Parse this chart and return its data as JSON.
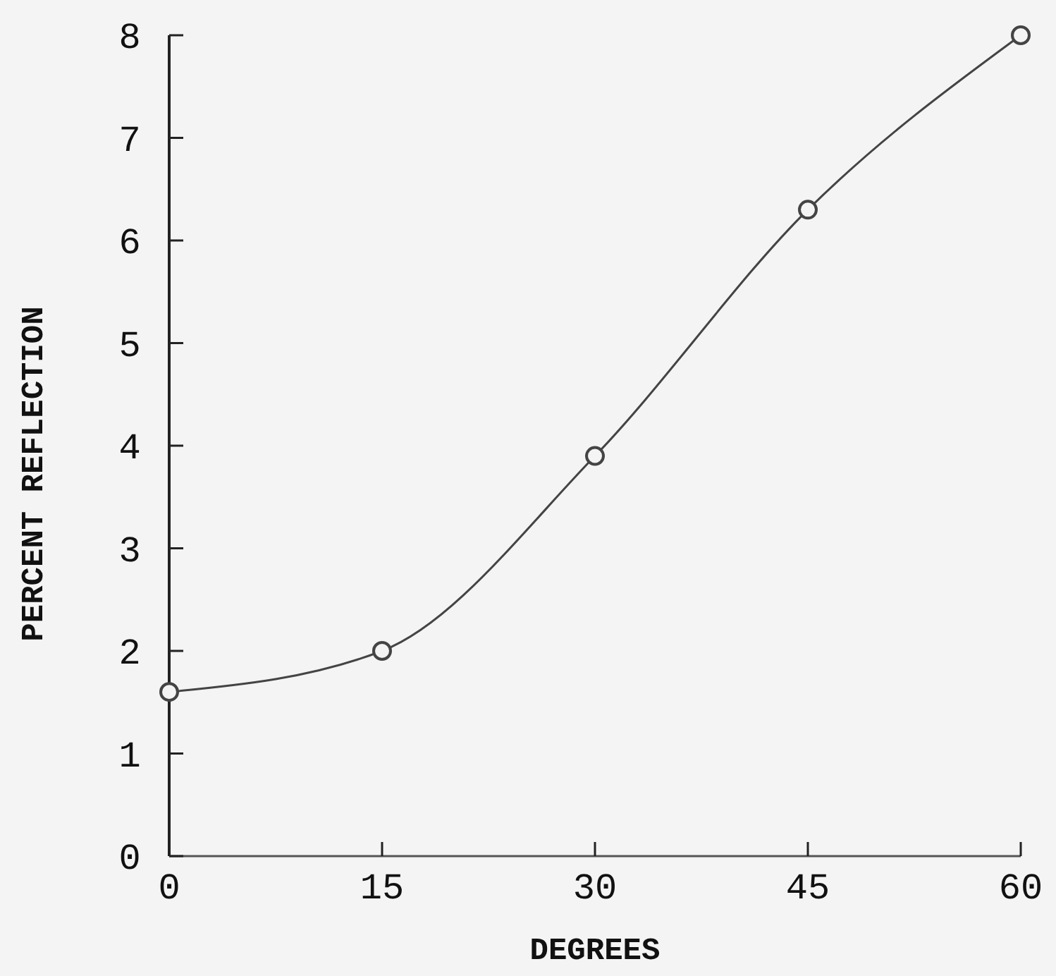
{
  "chart_data": {
    "type": "line",
    "xlabel": "DEGREES",
    "ylabel": "PERCENT REFLECTION",
    "x": [
      0,
      15,
      30,
      45,
      60
    ],
    "series": [
      {
        "color": "#444444",
        "values": [
          1.6,
          2.0,
          3.9,
          6.3,
          8.0
        ]
      }
    ],
    "xlim": [
      0,
      60
    ],
    "xticks": [
      0,
      15,
      30,
      45,
      60
    ],
    "ylim": [
      0,
      8
    ],
    "yticks": [
      0,
      1,
      2,
      3,
      4,
      5,
      6,
      7,
      8
    ],
    "grid": false,
    "marker": "circle",
    "line_style": "solid"
  }
}
